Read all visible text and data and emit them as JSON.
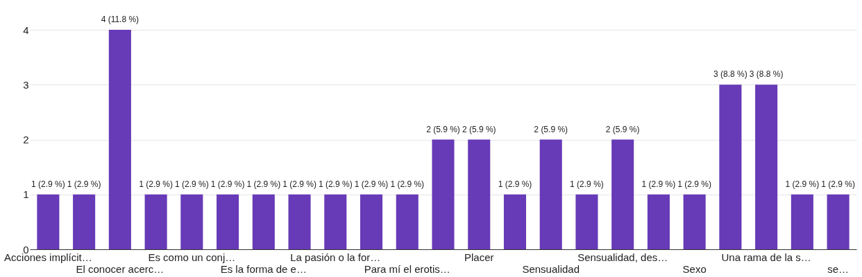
{
  "chart_data": {
    "type": "bar",
    "categories": [
      "Acciones implícit…",
      null,
      "El conocer acerc…",
      null,
      "Es como un conj…",
      null,
      "Es la forma de e…",
      null,
      "La pasión o la for…",
      null,
      "Para mí el erotis…",
      null,
      "Placer",
      null,
      "Sensualidad",
      null,
      "Sensualidad, des…",
      null,
      "Sexo",
      null,
      "Una rama de la s…",
      null,
      "se…"
    ],
    "values": [
      1,
      1,
      4,
      1,
      1,
      1,
      1,
      1,
      1,
      1,
      1,
      2,
      2,
      1,
      2,
      1,
      2,
      1,
      1,
      3,
      3,
      1,
      1
    ],
    "value_labels": [
      "1 (2.9 %)",
      "1 (2.9 %)",
      "4 (11.8 %)",
      "1 (2.9 %)",
      "1 (2.9 %)",
      "1 (2.9 %)",
      "1 (2.9 %)",
      "1 (2.9 %)",
      "1 (2.9 %)",
      "1 (2.9 %)",
      "1 (2.9 %)",
      "2 (5.9 %)",
      "2 (5.9 %)",
      "1 (2.9 %)",
      "2 (5.9 %)",
      "1 (2.9 %)",
      "2 (5.9 %)",
      "1 (2.9 %)",
      "1 (2.9 %)",
      "3 (8.8 %)",
      "3 (8.8 %)",
      "1 (2.9 %)",
      "1 (2.9 %)"
    ],
    "color": "#673ab7",
    "ylim": [
      0,
      4
    ],
    "yticks": [
      0,
      1,
      2,
      3,
      4
    ],
    "grid": "y"
  }
}
